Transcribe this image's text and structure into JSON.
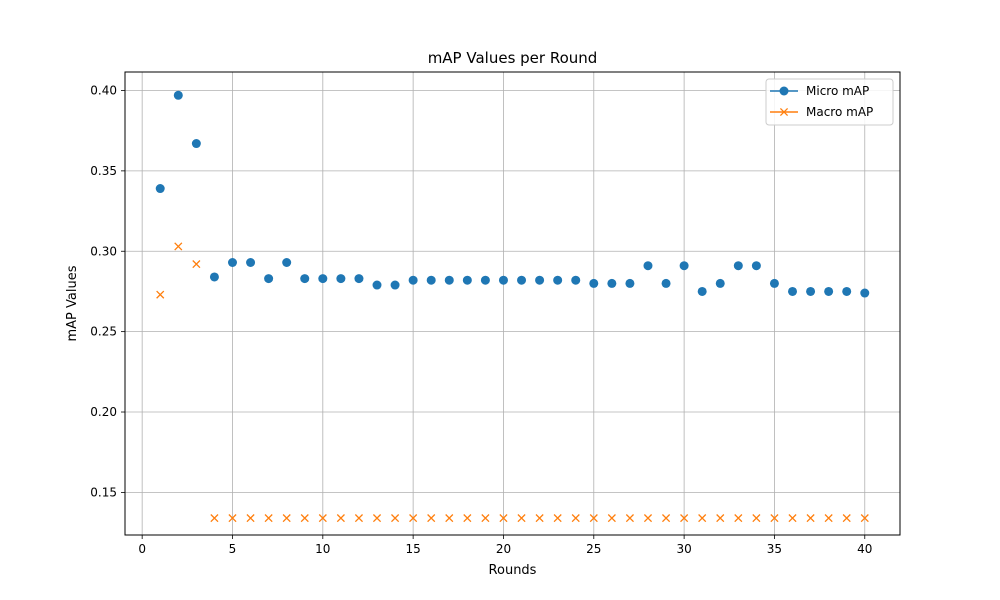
{
  "chart_data": {
    "type": "scatter",
    "title": "mAP Values per Round",
    "xlabel": "Rounds",
    "ylabel": "mAP Values",
    "xlim": [
      -0.95,
      41.95
    ],
    "ylim": [
      0.1235,
      0.4115
    ],
    "xticks": [
      0,
      5,
      10,
      15,
      20,
      25,
      30,
      35,
      40
    ],
    "xtick_labels": [
      "0",
      "5",
      "10",
      "15",
      "20",
      "25",
      "30",
      "35",
      "40"
    ],
    "yticks": [
      0.15,
      0.2,
      0.25,
      0.3,
      0.35,
      0.4
    ],
    "ytick_labels": [
      "0.15",
      "0.20",
      "0.25",
      "0.30",
      "0.35",
      "0.40"
    ],
    "grid": true,
    "legend_position": "top-right",
    "x": [
      1,
      2,
      3,
      4,
      5,
      6,
      7,
      8,
      9,
      10,
      11,
      12,
      13,
      14,
      15,
      16,
      17,
      18,
      19,
      20,
      21,
      22,
      23,
      24,
      25,
      26,
      27,
      28,
      29,
      30,
      31,
      32,
      33,
      34,
      35,
      36,
      37,
      38,
      39,
      40
    ],
    "series": [
      {
        "name": "Micro mAP",
        "marker": "circle",
        "color": "#1f77b4",
        "values": [
          0.339,
          0.397,
          0.367,
          0.284,
          0.293,
          0.293,
          0.283,
          0.293,
          0.283,
          0.283,
          0.283,
          0.283,
          0.279,
          0.279,
          0.282,
          0.282,
          0.282,
          0.282,
          0.282,
          0.282,
          0.282,
          0.282,
          0.282,
          0.282,
          0.28,
          0.28,
          0.28,
          0.291,
          0.28,
          0.291,
          0.275,
          0.28,
          0.291,
          0.291,
          0.28,
          0.275,
          0.275,
          0.275,
          0.275,
          0.274
        ]
      },
      {
        "name": "Macro mAP",
        "marker": "x",
        "color": "#ff7f0e",
        "values": [
          0.273,
          0.303,
          0.292,
          0.134,
          0.134,
          0.134,
          0.134,
          0.134,
          0.134,
          0.134,
          0.134,
          0.134,
          0.134,
          0.134,
          0.134,
          0.134,
          0.134,
          0.134,
          0.134,
          0.134,
          0.134,
          0.134,
          0.134,
          0.134,
          0.134,
          0.134,
          0.134,
          0.134,
          0.134,
          0.134,
          0.134,
          0.134,
          0.134,
          0.134,
          0.134,
          0.134,
          0.134,
          0.134,
          0.134,
          0.134
        ]
      }
    ]
  }
}
